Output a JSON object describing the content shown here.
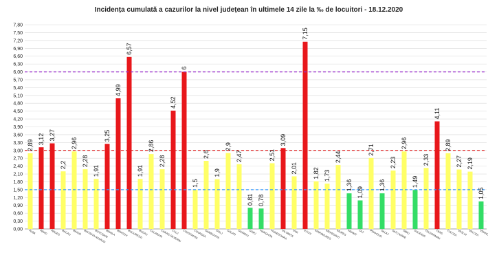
{
  "chart_data": {
    "type": "bar",
    "title": "Incidența cumulată a cazurilor la nivel județean în ultimele 14 zile    la ‰ de locuitori   - 18.12.2020",
    "xlabel": "",
    "ylabel": "",
    "ylim": [
      0,
      7.8
    ],
    "ytick_step": 0.3,
    "ytick_labels": [
      "0,00",
      "0,30",
      "0,60",
      "0,90",
      "1,20",
      "1,50",
      "1,80",
      "2,10",
      "2,40",
      "2,70",
      "3,00",
      "3,30",
      "3,60",
      "3,90",
      "4,20",
      "4,50",
      "4,80",
      "5,10",
      "5,40",
      "5,70",
      "6,00",
      "6,30",
      "6,60",
      "6,90",
      "7,20",
      "7,50",
      "7,80"
    ],
    "grid": true,
    "categories": [
      "ALBA",
      "ARAD",
      "ARGES",
      "BACAU",
      "BIHOR",
      "BISTRITA NASAUD",
      "BOTOSANI",
      "BRAILA",
      "BRASOV",
      "BUCURESTI",
      "BUZAU",
      "CALARASI",
      "CARAS-SEVERIN",
      "CLUJ",
      "CONSTANTA",
      "COVASNA",
      "DAMBOVITA",
      "DOLJ",
      "GALATI",
      "GIURGIU",
      "GORJ",
      "HARGHITA",
      "HUNEDOARA",
      "IALOMITA",
      "IASI",
      "ILFOV",
      "MARAMURES",
      "MEHEDINTI",
      "MURES",
      "NEAMT",
      "OLT",
      "PRAHOVA",
      "SALAJ",
      "SATU MARE",
      "SIBIU",
      "SUCEAVA",
      "TELEORMAN",
      "TIMIS",
      "TULCEA",
      "VASLUI",
      "VALCEA",
      "VRANCEA"
    ],
    "values": [
      2.89,
      3.12,
      3.27,
      2.2,
      2.96,
      2.28,
      1.91,
      3.25,
      4.99,
      6.57,
      1.91,
      2.86,
      2.28,
      4.52,
      6,
      1.5,
      2.6,
      1.9,
      2.9,
      2.47,
      0.81,
      0.78,
      2.51,
      3.09,
      2.01,
      7.15,
      1.82,
      1.73,
      2.44,
      1.36,
      1.09,
      2.71,
      1.36,
      2.23,
      2.96,
      1.49,
      2.33,
      4.11,
      2.89,
      2.27,
      2.19,
      1.05
    ],
    "value_labels": [
      "2,89",
      "3,12",
      "3,27",
      "2,2",
      "2,96",
      "2,28",
      "1,91",
      "3,25",
      "4,99",
      "6,57",
      "1,91",
      "2,86",
      "2,28",
      "4,52",
      "6",
      "1,5",
      "2,6",
      "1,9",
      "2,9",
      "2,47",
      "0,81",
      "0,78",
      "2,51",
      "3,09",
      "2,01",
      "7,15",
      "1,82",
      "1,73",
      "2,44",
      "1,36",
      "1,09",
      "2,71",
      "1,36",
      "2,23",
      "2,96",
      "1,49",
      "2,33",
      "4,11",
      "2,89",
      "2,27",
      "2,19",
      "1,05"
    ],
    "thresholds": [
      {
        "value": 1.5,
        "color": "#3399ff"
      },
      {
        "value": 3.0,
        "color": "#dd2222"
      },
      {
        "value": 6.0,
        "color": "#9933cc"
      }
    ],
    "colors": {
      "red": "#e8171b",
      "yellow": "#ffff66",
      "green": "#33dd66",
      "grid": "#d9d9d9",
      "axis": "#888888"
    }
  }
}
